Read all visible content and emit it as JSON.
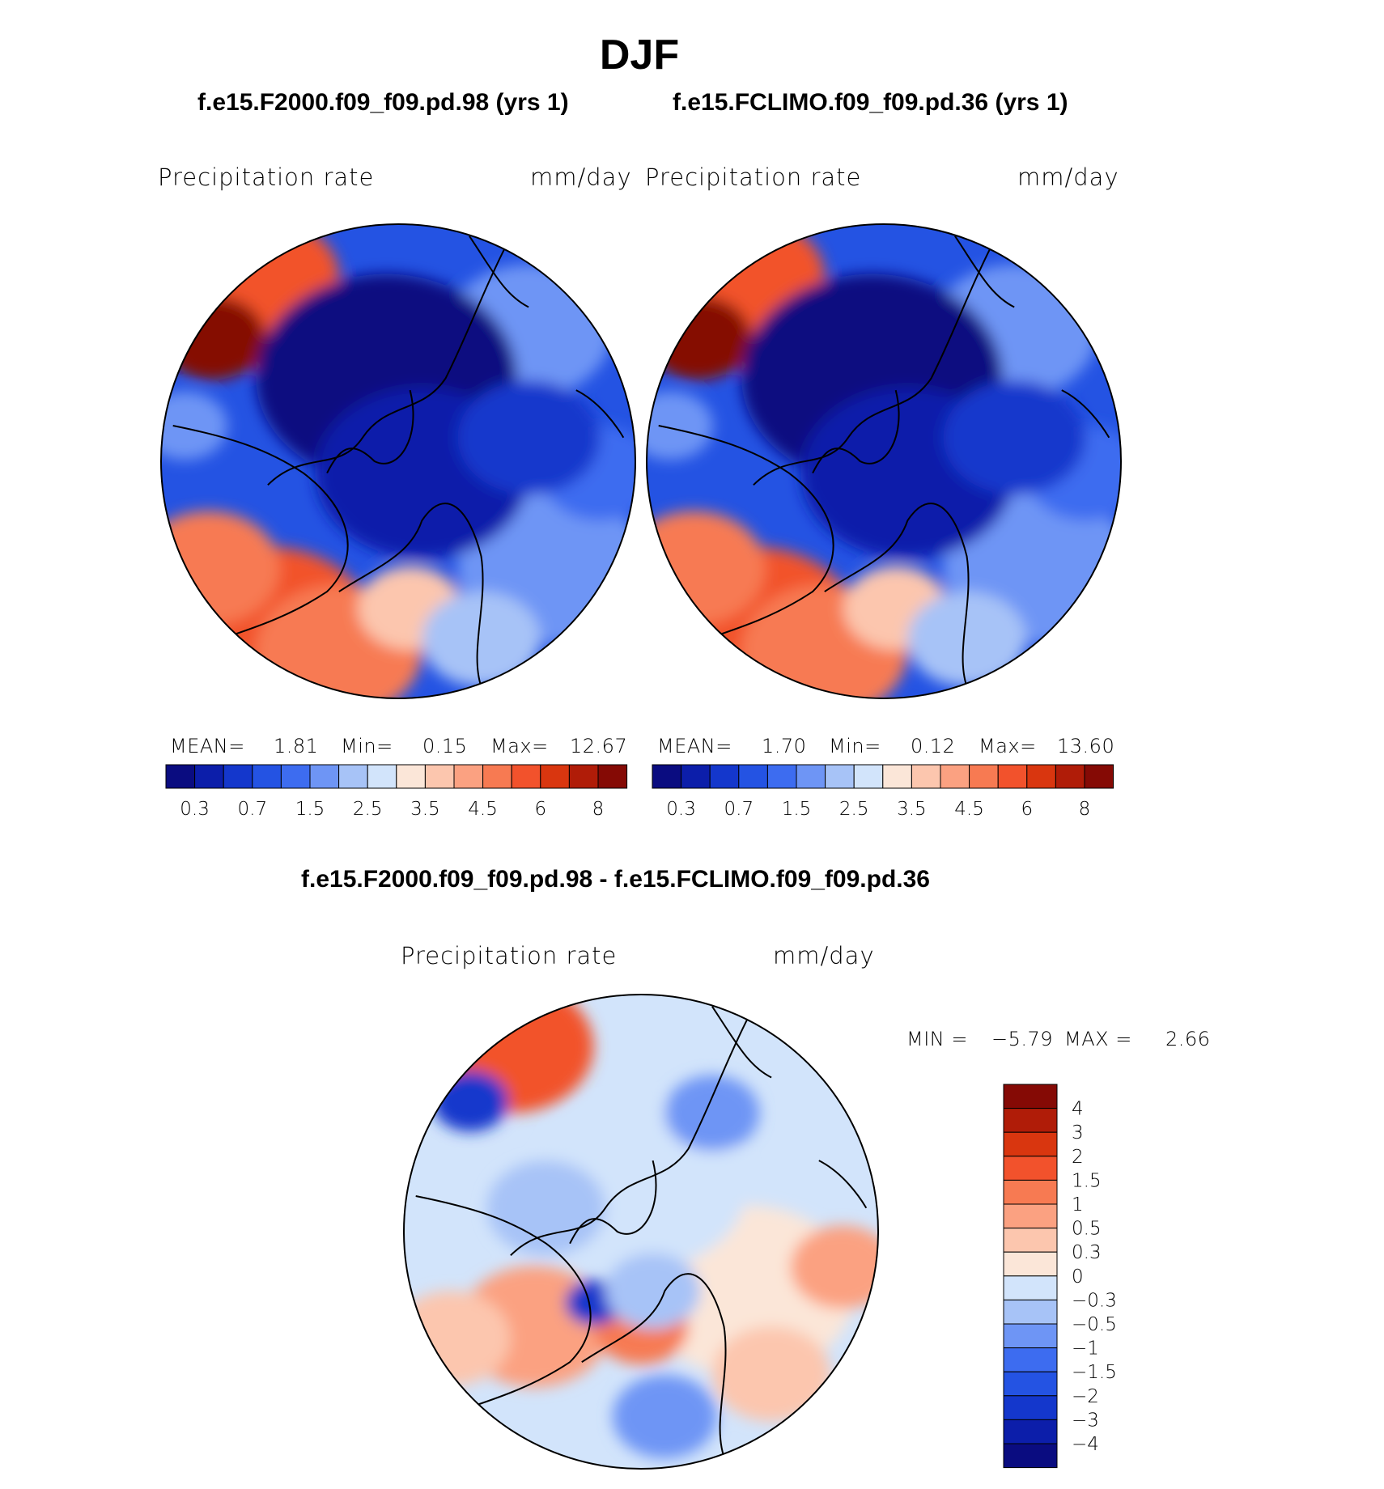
{
  "title": "DJF",
  "panels": [
    {
      "case": "f.e15.F2000.f09_f09.pd.98 (yrs 1)",
      "variable": "Precipitation  rate",
      "units": "mm/day",
      "mean_label": "MEAN=",
      "mean": "1.81",
      "min_label": "Min=",
      "min": "0.15",
      "max_label": "Max=",
      "max": "12.67"
    },
    {
      "case": "f.e15.FCLIMO.f09_f09.pd.36 (yrs 1)",
      "variable": "Precipitation  rate",
      "units": "mm/day",
      "mean_label": "MEAN=",
      "mean": "1.70",
      "min_label": "Min=",
      "min": "0.12",
      "max_label": "Max=",
      "max": "13.60"
    }
  ],
  "diff": {
    "title": "f.e15.F2000.f09_f09.pd.98 - f.e15.FCLIMO.f09_f09.pd.36",
    "variable": "Precipitation  rate",
    "units": "mm/day",
    "min_label": "MIN =",
    "min": "−5.79",
    "max_label": "MAX =",
    "max": "2.66"
  },
  "chart_data": [
    {
      "type": "heatmap",
      "projection": "north polar stereographic",
      "title": "f.e15.F2000.f09_f09.pd.98 (yrs 1)",
      "variable": "Precipitation rate",
      "units": "mm/day",
      "stats": {
        "mean": 1.81,
        "min": 0.15,
        "max": 12.67
      },
      "levels": [
        0.2,
        0.3,
        0.5,
        0.7,
        1,
        1.5,
        2,
        2.5,
        3,
        3.5,
        4,
        4.5,
        5,
        6,
        7,
        8
      ],
      "colorbar_tick_labels": [
        "0.3",
        "0.7",
        "1.5",
        "2.5",
        "3.5",
        "4.5",
        "6",
        "8"
      ],
      "colors": [
        "#0a0c80",
        "#0c1eaa",
        "#1437cc",
        "#2453e3",
        "#3d6cf0",
        "#6e95f5",
        "#a7c3f7",
        "#d2e4fb",
        "#fbe6d8",
        "#fcc6ae",
        "#fba181",
        "#f77a52",
        "#f2522c",
        "#d9360f",
        "#b01c08",
        "#850a05"
      ]
    },
    {
      "type": "heatmap",
      "projection": "north polar stereographic",
      "title": "f.e15.FCLIMO.f09_f09.pd.36 (yrs 1)",
      "variable": "Precipitation rate",
      "units": "mm/day",
      "stats": {
        "mean": 1.7,
        "min": 0.12,
        "max": 13.6
      },
      "levels": [
        0.2,
        0.3,
        0.5,
        0.7,
        1,
        1.5,
        2,
        2.5,
        3,
        3.5,
        4,
        4.5,
        5,
        6,
        7,
        8
      ],
      "colorbar_tick_labels": [
        "0.3",
        "0.7",
        "1.5",
        "2.5",
        "3.5",
        "4.5",
        "6",
        "8"
      ],
      "colors": [
        "#0a0c80",
        "#0c1eaa",
        "#1437cc",
        "#2453e3",
        "#3d6cf0",
        "#6e95f5",
        "#a7c3f7",
        "#d2e4fb",
        "#fbe6d8",
        "#fcc6ae",
        "#fba181",
        "#f77a52",
        "#f2522c",
        "#d9360f",
        "#b01c08",
        "#850a05"
      ]
    },
    {
      "type": "heatmap",
      "projection": "north polar stereographic",
      "title": "f.e15.F2000.f09_f09.pd.98 - f.e15.FCLIMO.f09_f09.pd.36",
      "variable": "Precipitation rate",
      "units": "mm/day",
      "stats": {
        "min": -5.79,
        "max": 2.66
      },
      "levels": [
        -4,
        -3,
        -2,
        -1.5,
        -1,
        -0.5,
        -0.3,
        0,
        0.3,
        0.5,
        1,
        1.5,
        2,
        3,
        4
      ],
      "colorbar_tick_labels": [
        "4",
        "3",
        "2",
        "1.5",
        "1",
        "0.5",
        "0.3",
        "0",
        "−0.3",
        "−0.5",
        "−1",
        "−1.5",
        "−2",
        "−3",
        "−4"
      ],
      "colors": [
        "#850a05",
        "#b01c08",
        "#d9360f",
        "#f2522c",
        "#f77a52",
        "#fba181",
        "#fcc6ae",
        "#fbe6d8",
        "#d2e4fb",
        "#a7c3f7",
        "#6e95f5",
        "#3d6cf0",
        "#2453e3",
        "#1437cc",
        "#0c1eaa",
        "#0a0c80"
      ]
    }
  ]
}
